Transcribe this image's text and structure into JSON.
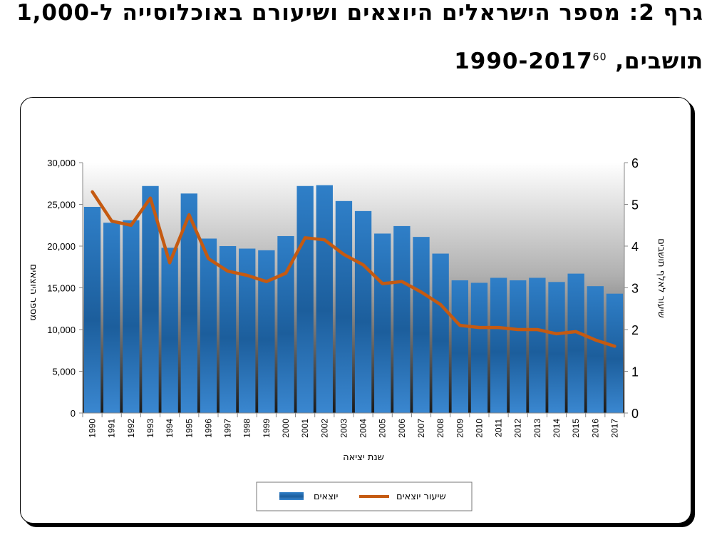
{
  "header": {
    "line1": "גרף 2: מספר הישראלים היוצאים ושיעורם באוכלוסייה ל-1,000",
    "line2": "תושבים, 1990-2017",
    "footnote": "60"
  },
  "chart_data": {
    "type": "bar",
    "categories": [
      "1990",
      "1991",
      "1992",
      "1993",
      "1994",
      "1995",
      "1996",
      "1997",
      "1998",
      "1999",
      "2000",
      "2001",
      "2002",
      "2003",
      "2004",
      "2005",
      "2006",
      "2007",
      "2008",
      "2009",
      "2010",
      "2011",
      "2012",
      "2013",
      "2014",
      "2015",
      "2016",
      "2017"
    ],
    "series": [
      {
        "name": "יוצאים",
        "type": "bar",
        "axis": "left",
        "values": [
          24700,
          22800,
          23100,
          27200,
          19800,
          26300,
          20900,
          20000,
          19700,
          19500,
          21200,
          27200,
          27300,
          25400,
          24200,
          21500,
          22400,
          21100,
          19100,
          15900,
          15600,
          16200,
          15900,
          16200,
          15700,
          16700,
          15200,
          14300
        ],
        "color": "#2a72b8"
      },
      {
        "name": "שיעור יוצאים",
        "type": "line",
        "axis": "right",
        "values": [
          5.3,
          4.6,
          4.5,
          5.15,
          3.6,
          4.75,
          3.7,
          3.4,
          3.3,
          3.15,
          3.35,
          4.2,
          4.15,
          3.8,
          3.55,
          3.1,
          3.15,
          2.9,
          2.6,
          2.1,
          2.05,
          2.05,
          2.0,
          2.0,
          1.9,
          1.95,
          1.75,
          1.6
        ],
        "color": "#c55a11"
      }
    ],
    "xlabel": "שנת יציאה",
    "ylabel": "מספר היוצאים",
    "y2label": "שיעור לאלף תושבים",
    "ylim": [
      0,
      30000
    ],
    "y2lim": [
      0,
      6
    ],
    "yticks": [
      "0",
      "5,000",
      "10,000",
      "15,000",
      "20,000",
      "25,000",
      "30,000"
    ],
    "y2ticks": [
      "0",
      "1",
      "2",
      "3",
      "4",
      "5",
      "6"
    ],
    "legend_position": "bottom"
  }
}
